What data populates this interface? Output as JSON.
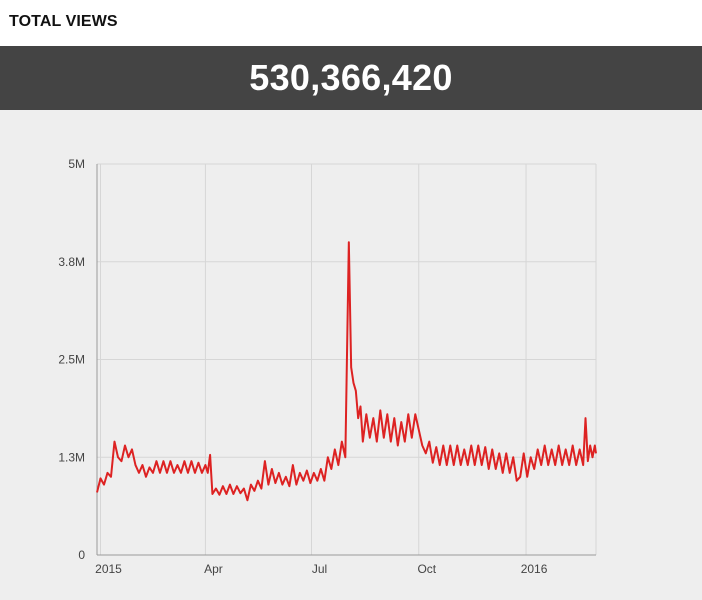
{
  "header": {
    "title": "TOTAL VIEWS"
  },
  "total": {
    "value": "530,366,420"
  },
  "colors": {
    "line": "#dd2222",
    "grid": "#d6d6d6",
    "axis": "#999999",
    "total_bar": "#444444",
    "chart_bg": "#eeeeee"
  },
  "chart_data": {
    "type": "line",
    "title": "",
    "xlabel": "",
    "ylabel": "",
    "ylim": [
      0,
      5000000
    ],
    "grid": true,
    "y_ticks": [
      {
        "value": 0,
        "label": "0"
      },
      {
        "value": 1250000,
        "label": "1.3M"
      },
      {
        "value": 2500000,
        "label": "2.5M"
      },
      {
        "value": 3750000,
        "label": "3.8M"
      },
      {
        "value": 5000000,
        "label": "5M"
      }
    ],
    "x_ticks": [
      {
        "date": "2015-01-01",
        "label": "2015"
      },
      {
        "date": "2015-04-01",
        "label": "Apr"
      },
      {
        "date": "2015-07-01",
        "label": "Jul"
      },
      {
        "date": "2015-10-01",
        "label": "Oct"
      },
      {
        "date": "2016-01-01",
        "label": "2016"
      }
    ],
    "xlim": [
      "2014-12-29",
      "2016-03-01"
    ],
    "series": [
      {
        "values": [
          [
            "2014-12-29",
            800000
          ],
          [
            "2015-01-01",
            980000
          ],
          [
            "2015-01-04",
            900000
          ],
          [
            "2015-01-07",
            1050000
          ],
          [
            "2015-01-10",
            1000000
          ],
          [
            "2015-01-13",
            1450000
          ],
          [
            "2015-01-16",
            1250000
          ],
          [
            "2015-01-19",
            1200000
          ],
          [
            "2015-01-22",
            1400000
          ],
          [
            "2015-01-25",
            1250000
          ],
          [
            "2015-01-28",
            1350000
          ],
          [
            "2015-01-31",
            1150000
          ],
          [
            "2015-02-03",
            1050000
          ],
          [
            "2015-02-06",
            1150000
          ],
          [
            "2015-02-09",
            1000000
          ],
          [
            "2015-02-12",
            1120000
          ],
          [
            "2015-02-15",
            1050000
          ],
          [
            "2015-02-18",
            1200000
          ],
          [
            "2015-02-21",
            1050000
          ],
          [
            "2015-02-24",
            1200000
          ],
          [
            "2015-02-27",
            1050000
          ],
          [
            "2015-03-02",
            1200000
          ],
          [
            "2015-03-05",
            1050000
          ],
          [
            "2015-03-08",
            1150000
          ],
          [
            "2015-03-11",
            1050000
          ],
          [
            "2015-03-14",
            1200000
          ],
          [
            "2015-03-17",
            1050000
          ],
          [
            "2015-03-20",
            1200000
          ],
          [
            "2015-03-23",
            1050000
          ],
          [
            "2015-03-26",
            1180000
          ],
          [
            "2015-03-29",
            1050000
          ],
          [
            "2015-04-01",
            1150000
          ],
          [
            "2015-04-03",
            1050000
          ],
          [
            "2015-04-05",
            1280000
          ],
          [
            "2015-04-07",
            780000
          ],
          [
            "2015-04-10",
            850000
          ],
          [
            "2015-04-13",
            770000
          ],
          [
            "2015-04-16",
            880000
          ],
          [
            "2015-04-19",
            780000
          ],
          [
            "2015-04-22",
            900000
          ],
          [
            "2015-04-25",
            780000
          ],
          [
            "2015-04-28",
            880000
          ],
          [
            "2015-05-01",
            790000
          ],
          [
            "2015-05-04",
            850000
          ],
          [
            "2015-05-07",
            700000
          ],
          [
            "2015-05-10",
            900000
          ],
          [
            "2015-05-13",
            820000
          ],
          [
            "2015-05-16",
            950000
          ],
          [
            "2015-05-19",
            850000
          ],
          [
            "2015-05-22",
            1200000
          ],
          [
            "2015-05-25",
            900000
          ],
          [
            "2015-05-28",
            1100000
          ],
          [
            "2015-05-31",
            920000
          ],
          [
            "2015-06-03",
            1050000
          ],
          [
            "2015-06-06",
            900000
          ],
          [
            "2015-06-09",
            1000000
          ],
          [
            "2015-06-12",
            880000
          ],
          [
            "2015-06-15",
            1150000
          ],
          [
            "2015-06-18",
            900000
          ],
          [
            "2015-06-21",
            1050000
          ],
          [
            "2015-06-24",
            950000
          ],
          [
            "2015-06-27",
            1080000
          ],
          [
            "2015-06-30",
            920000
          ],
          [
            "2015-07-03",
            1050000
          ],
          [
            "2015-07-06",
            950000
          ],
          [
            "2015-07-09",
            1100000
          ],
          [
            "2015-07-12",
            950000
          ],
          [
            "2015-07-15",
            1250000
          ],
          [
            "2015-07-18",
            1100000
          ],
          [
            "2015-07-21",
            1350000
          ],
          [
            "2015-07-24",
            1150000
          ],
          [
            "2015-07-27",
            1450000
          ],
          [
            "2015-07-30",
            1250000
          ],
          [
            "2015-08-02",
            4000000
          ],
          [
            "2015-08-04",
            2400000
          ],
          [
            "2015-08-06",
            2200000
          ],
          [
            "2015-08-08",
            2100000
          ],
          [
            "2015-08-10",
            1750000
          ],
          [
            "2015-08-12",
            1900000
          ],
          [
            "2015-08-14",
            1450000
          ],
          [
            "2015-08-17",
            1800000
          ],
          [
            "2015-08-20",
            1500000
          ],
          [
            "2015-08-23",
            1750000
          ],
          [
            "2015-08-26",
            1450000
          ],
          [
            "2015-08-29",
            1850000
          ],
          [
            "2015-09-01",
            1500000
          ],
          [
            "2015-09-04",
            1800000
          ],
          [
            "2015-09-07",
            1450000
          ],
          [
            "2015-09-10",
            1750000
          ],
          [
            "2015-09-13",
            1400000
          ],
          [
            "2015-09-16",
            1700000
          ],
          [
            "2015-09-19",
            1450000
          ],
          [
            "2015-09-22",
            1800000
          ],
          [
            "2015-09-25",
            1500000
          ],
          [
            "2015-09-28",
            1800000
          ],
          [
            "2015-10-01",
            1600000
          ],
          [
            "2015-10-04",
            1400000
          ],
          [
            "2015-10-07",
            1300000
          ],
          [
            "2015-10-10",
            1450000
          ],
          [
            "2015-10-13",
            1180000
          ],
          [
            "2015-10-16",
            1380000
          ],
          [
            "2015-10-19",
            1150000
          ],
          [
            "2015-10-22",
            1400000
          ],
          [
            "2015-10-25",
            1150000
          ],
          [
            "2015-10-28",
            1400000
          ],
          [
            "2015-10-31",
            1150000
          ],
          [
            "2015-11-03",
            1400000
          ],
          [
            "2015-11-06",
            1150000
          ],
          [
            "2015-11-09",
            1350000
          ],
          [
            "2015-11-12",
            1150000
          ],
          [
            "2015-11-15",
            1400000
          ],
          [
            "2015-11-18",
            1150000
          ],
          [
            "2015-11-21",
            1400000
          ],
          [
            "2015-11-24",
            1150000
          ],
          [
            "2015-11-27",
            1380000
          ],
          [
            "2015-11-30",
            1100000
          ],
          [
            "2015-12-03",
            1350000
          ],
          [
            "2015-12-06",
            1100000
          ],
          [
            "2015-12-09",
            1300000
          ],
          [
            "2015-12-12",
            1050000
          ],
          [
            "2015-12-15",
            1300000
          ],
          [
            "2015-12-18",
            1050000
          ],
          [
            "2015-12-21",
            1250000
          ],
          [
            "2015-12-24",
            950000
          ],
          [
            "2015-12-27",
            1000000
          ],
          [
            "2015-12-30",
            1300000
          ],
          [
            "2016-01-02",
            1000000
          ],
          [
            "2016-01-05",
            1250000
          ],
          [
            "2016-01-08",
            1100000
          ],
          [
            "2016-01-11",
            1350000
          ],
          [
            "2016-01-14",
            1150000
          ],
          [
            "2016-01-17",
            1400000
          ],
          [
            "2016-01-20",
            1150000
          ],
          [
            "2016-01-23",
            1350000
          ],
          [
            "2016-01-26",
            1150000
          ],
          [
            "2016-01-29",
            1400000
          ],
          [
            "2016-02-01",
            1150000
          ],
          [
            "2016-02-04",
            1350000
          ],
          [
            "2016-02-07",
            1150000
          ],
          [
            "2016-02-10",
            1400000
          ],
          [
            "2016-02-13",
            1150000
          ],
          [
            "2016-02-16",
            1350000
          ],
          [
            "2016-02-19",
            1150000
          ],
          [
            "2016-02-21",
            1750000
          ],
          [
            "2016-02-23",
            1200000
          ],
          [
            "2016-02-25",
            1400000
          ],
          [
            "2016-02-27",
            1250000
          ],
          [
            "2016-02-29",
            1400000
          ],
          [
            "2016-03-01",
            1300000
          ]
        ]
      }
    ]
  }
}
